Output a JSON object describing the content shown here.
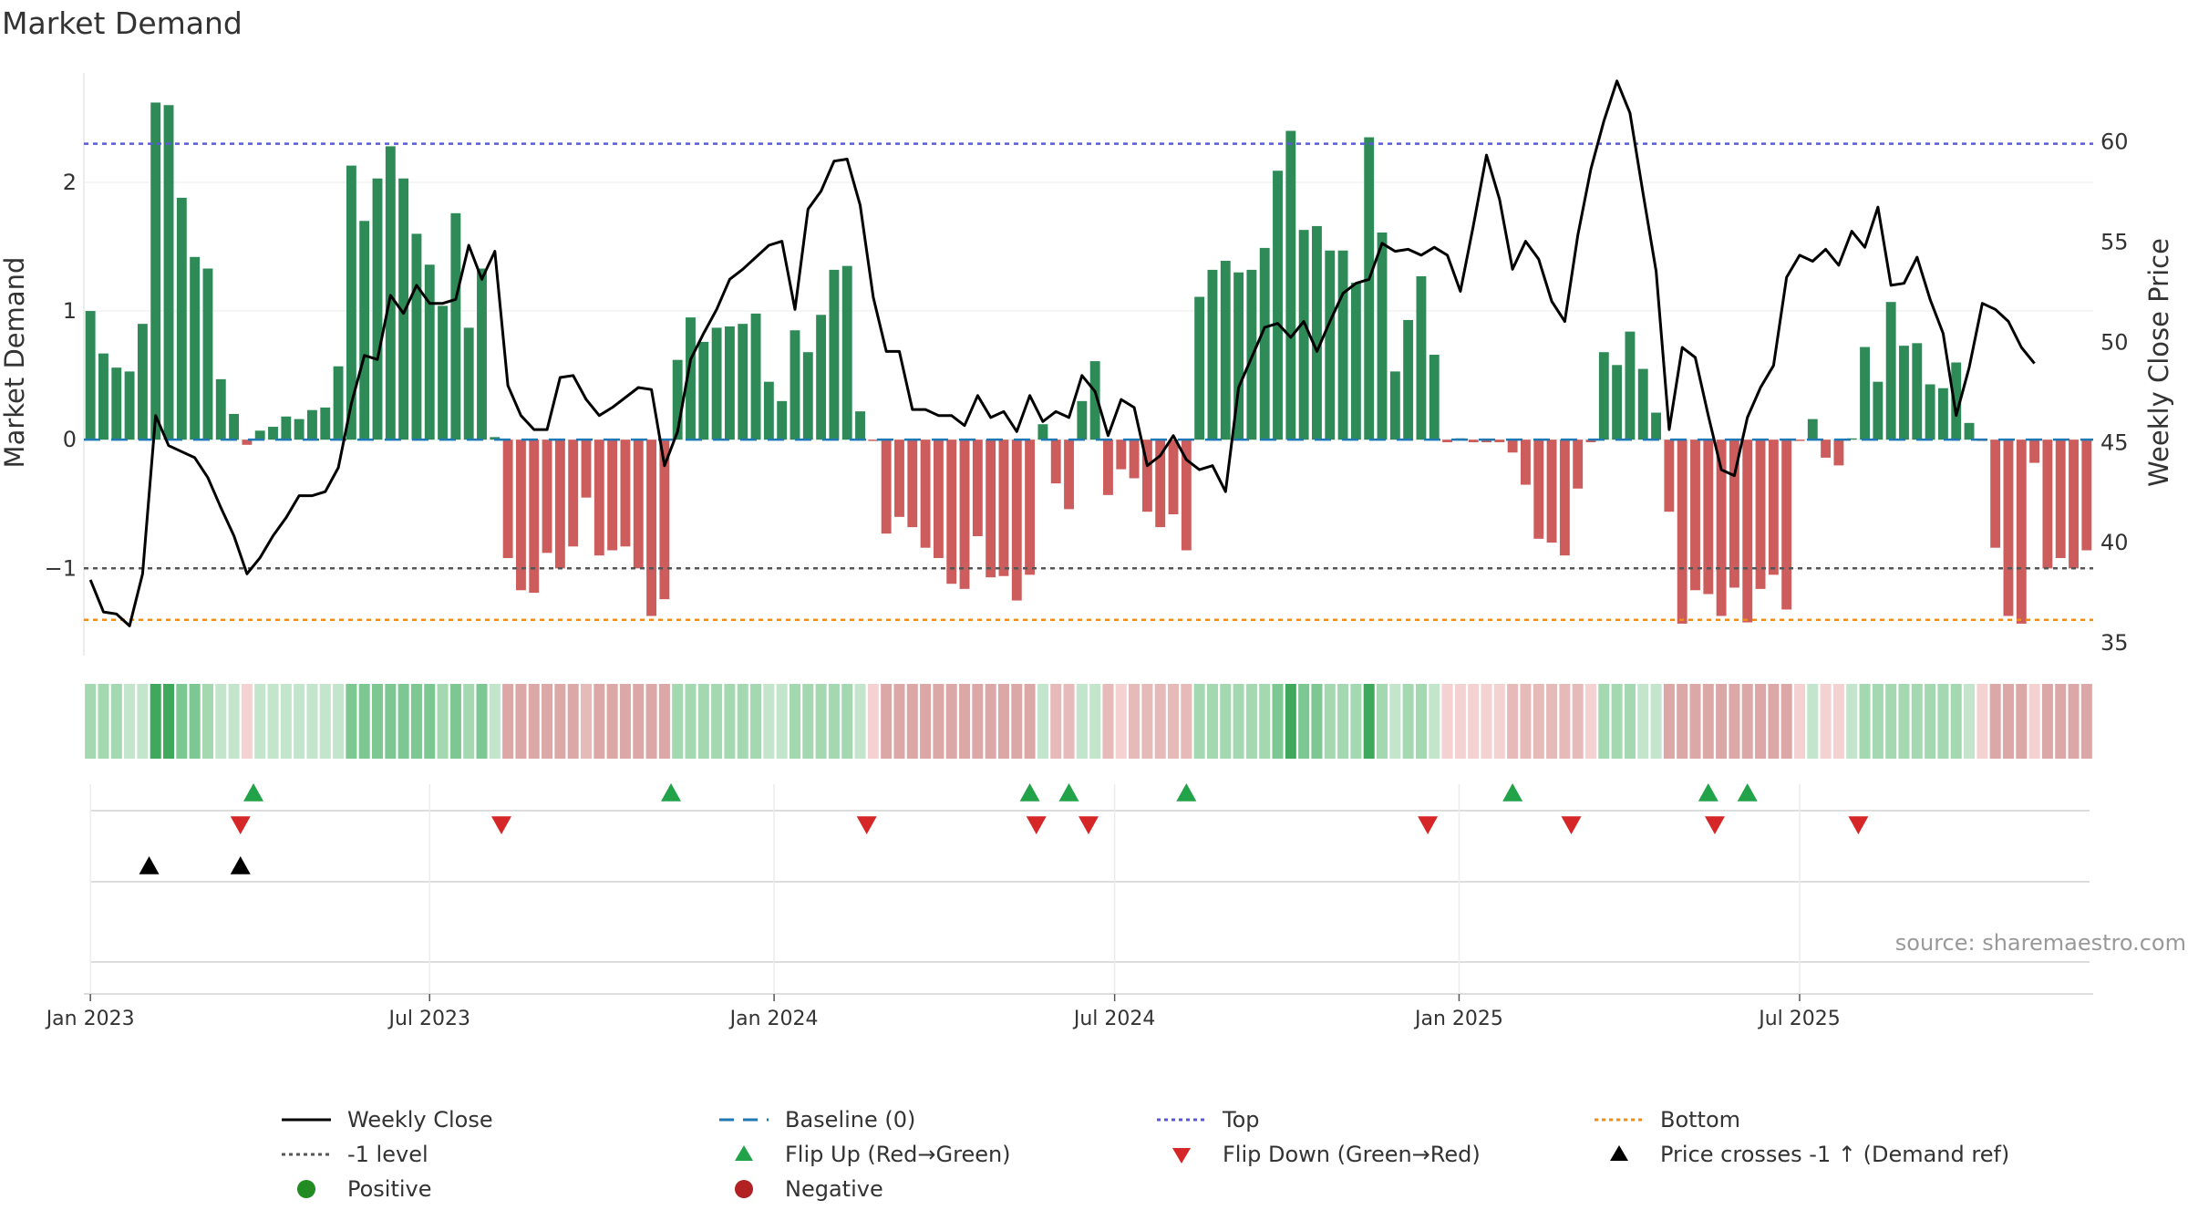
{
  "title": "Market Demand",
  "source_note": "source: sharemaestro.com",
  "colors": {
    "positive_bar": "#2e8b57",
    "negative_bar": "#cd5c5c",
    "close_line": "#000000",
    "baseline": "#1f77b4",
    "top": "#5b5bd6",
    "bottom": "#ee8c1e",
    "minus1": "#555555",
    "flip_up": "#22a34a",
    "flip_down": "#d62728",
    "cross": "#000000",
    "positive_dot": "#228b22",
    "negative_dot": "#b22222"
  },
  "chart_data": {
    "type": "bar+line",
    "title": "Market Demand",
    "ylabel_left": "Market Demand",
    "ylabel_right": "Weekly Close Price",
    "ylim_left": [
      -1.65,
      2.85
    ],
    "ylim_right": [
      34.5,
      63.4
    ],
    "left_ticks": [
      2,
      1,
      0,
      -1
    ],
    "left_tick_labels": [
      "2",
      "1",
      "0",
      "−1"
    ],
    "right_ticks": [
      60,
      55,
      50,
      45,
      40,
      35
    ],
    "x_tick_labels": [
      "Jan 2023",
      "Jul 2023",
      "Jan 2024",
      "Jul 2024",
      "Jan 2025",
      "Jul 2025"
    ],
    "x_tick_weeks": [
      0.5,
      26.5,
      52.9,
      79,
      105.4,
      131.5
    ],
    "top_level": 2.3,
    "bottom_level": -1.4,
    "minus1_level": -1,
    "demand": [
      1.0,
      0.67,
      0.56,
      0.53,
      0.9,
      2.62,
      2.6,
      1.88,
      1.42,
      1.33,
      0.47,
      0.2,
      -0.04,
      0.07,
      0.1,
      0.18,
      0.16,
      0.23,
      0.25,
      0.57,
      2.13,
      1.7,
      2.03,
      2.28,
      2.03,
      1.6,
      1.36,
      1.04,
      1.76,
      0.87,
      1.33,
      0.02,
      -0.92,
      -1.17,
      -1.19,
      -0.88,
      -1.0,
      -0.83,
      -0.45,
      -0.9,
      -0.86,
      -0.83,
      -1.0,
      -1.37,
      -1.24,
      0.62,
      0.95,
      0.76,
      0.87,
      0.88,
      0.9,
      0.98,
      0.45,
      0.3,
      0.85,
      0.68,
      0.97,
      1.32,
      1.35,
      0.22,
      -0.01,
      -0.73,
      -0.6,
      -0.68,
      -0.84,
      -0.92,
      -1.12,
      -1.16,
      -0.75,
      -1.07,
      -1.06,
      -1.25,
      -1.05,
      0.12,
      -0.34,
      -0.54,
      0.3,
      0.61,
      -0.43,
      -0.23,
      -0.3,
      -0.56,
      -0.68,
      -0.58,
      -0.86,
      1.11,
      1.32,
      1.39,
      1.3,
      1.32,
      1.49,
      2.09,
      2.4,
      1.63,
      1.66,
      1.47,
      1.47,
      1.22,
      2.35,
      1.61,
      0.53,
      0.93,
      1.27,
      0.66,
      -0.02,
      0.01,
      -0.02,
      -0.02,
      -0.02,
      -0.1,
      -0.35,
      -0.77,
      -0.8,
      -0.9,
      -0.38,
      -0.02,
      0.68,
      0.58,
      0.84,
      0.55,
      0.21,
      -0.56,
      -1.43,
      -1.17,
      -1.2,
      -1.37,
      -1.15,
      -1.42,
      -1.16,
      -1.05,
      -1.32,
      -0.01,
      0.16,
      -0.14,
      -0.2,
      0.01,
      0.72,
      0.45,
      1.07,
      0.73,
      0.75,
      0.43,
      0.4,
      0.6,
      0.13,
      -0.01,
      -0.84,
      -1.37,
      -1.43,
      -0.18,
      -1.0,
      -0.92,
      -1.0,
      -0.86
    ],
    "close": [
      38.1,
      36.5,
      36.4,
      35.8,
      38.4,
      46.3,
      44.8,
      44.5,
      44.2,
      43.2,
      41.7,
      40.3,
      38.4,
      39.2,
      40.3,
      41.2,
      42.3,
      42.3,
      42.5,
      43.7,
      46.9,
      49.3,
      49.1,
      52.3,
      51.4,
      52.8,
      51.9,
      51.9,
      52.1,
      54.8,
      53.1,
      54.5,
      47.8,
      46.3,
      45.6,
      45.6,
      48.2,
      48.3,
      47.1,
      46.3,
      46.7,
      47.2,
      47.7,
      47.6,
      43.8,
      45.5,
      49.1,
      50.4,
      51.6,
      53.1,
      53.6,
      54.2,
      54.8,
      55.0,
      51.6,
      56.6,
      57.5,
      59.0,
      59.1,
      56.8,
      52.2,
      49.5,
      49.5,
      46.6,
      46.6,
      46.3,
      46.3,
      45.8,
      47.3,
      46.2,
      46.5,
      45.5,
      47.3,
      46.0,
      46.5,
      46.2,
      48.3,
      47.5,
      45.3,
      47.1,
      46.7,
      43.8,
      44.3,
      45.3,
      44.1,
      43.6,
      43.8,
      42.5,
      47.7,
      49.2,
      50.7,
      50.9,
      50.2,
      51.0,
      49.5,
      51.0,
      52.4,
      52.9,
      53.1,
      54.9,
      54.5,
      54.6,
      54.3,
      54.7,
      54.3,
      52.5,
      55.8,
      59.3,
      57.1,
      53.6,
      55.0,
      54.1,
      52.0,
      51.0,
      55.3,
      58.6,
      61.0,
      63.0,
      61.4,
      57.4,
      53.5,
      45.6,
      49.7,
      49.2,
      46.3,
      43.6,
      43.3,
      46.2,
      47.7,
      48.8,
      53.2,
      54.3,
      54.0,
      54.6,
      53.8,
      55.5,
      54.7,
      56.7,
      52.8,
      52.9,
      54.2,
      52.1,
      50.4,
      46.3,
      48.7,
      51.9,
      51.6,
      51.0,
      49.7,
      48.9
    ],
    "heat_strip": [
      "#a3d8b0",
      "#a3d8b0",
      "#a3d8b0",
      "#c2e5cb",
      "#c2e5cb",
      "#40a85c",
      "#40a85c",
      "#7cc792",
      "#7cc792",
      "#a3d8b0",
      "#c2e5cb",
      "#c2e5cb",
      "#f4d2d2",
      "#c2e5cb",
      "#c2e5cb",
      "#c2e5cb",
      "#c2e5cb",
      "#c2e5cb",
      "#c2e5cb",
      "#c2e5cb",
      "#7cc792",
      "#7cc792",
      "#7cc792",
      "#7cc792",
      "#7cc792",
      "#7cc792",
      "#7cc792",
      "#a3d8b0",
      "#7cc792",
      "#a3d8b0",
      "#7cc792",
      "#c2e5cb",
      "#dca7a7",
      "#dca7a7",
      "#dca7a7",
      "#dca7a7",
      "#dca7a7",
      "#dca7a7",
      "#e7baba",
      "#dca7a7",
      "#dca7a7",
      "#dca7a7",
      "#dca7a7",
      "#dca7a7",
      "#dca7a7",
      "#a3d8b0",
      "#a3d8b0",
      "#a3d8b0",
      "#a3d8b0",
      "#a3d8b0",
      "#a3d8b0",
      "#a3d8b0",
      "#c2e5cb",
      "#c2e5cb",
      "#a3d8b0",
      "#a3d8b0",
      "#a3d8b0",
      "#a3d8b0",
      "#a3d8b0",
      "#c2e5cb",
      "#f4d2d2",
      "#dca7a7",
      "#dca7a7",
      "#dca7a7",
      "#dca7a7",
      "#dca7a7",
      "#dca7a7",
      "#dca7a7",
      "#dca7a7",
      "#dca7a7",
      "#dca7a7",
      "#dca7a7",
      "#dca7a7",
      "#c2e5cb",
      "#e7baba",
      "#e7baba",
      "#c2e5cb",
      "#c2e5cb",
      "#e7baba",
      "#f4d2d2",
      "#e7baba",
      "#e7baba",
      "#e7baba",
      "#e7baba",
      "#e7baba",
      "#a3d8b0",
      "#a3d8b0",
      "#a3d8b0",
      "#a3d8b0",
      "#a3d8b0",
      "#a3d8b0",
      "#7cc792",
      "#40a85c",
      "#7cc792",
      "#7cc792",
      "#a3d8b0",
      "#a3d8b0",
      "#a3d8b0",
      "#40a85c",
      "#a3d8b0",
      "#c2e5cb",
      "#a3d8b0",
      "#a3d8b0",
      "#c2e5cb",
      "#f4d2d2",
      "#f4d2d2",
      "#f4d2d2",
      "#f4d2d2",
      "#f4d2d2",
      "#e7baba",
      "#e7baba",
      "#e7baba",
      "#e7baba",
      "#e7baba",
      "#e7baba",
      "#f4d2d2",
      "#a3d8b0",
      "#a3d8b0",
      "#a3d8b0",
      "#c2e5cb",
      "#c2e5cb",
      "#dca7a7",
      "#dca7a7",
      "#dca7a7",
      "#dca7a7",
      "#dca7a7",
      "#dca7a7",
      "#dca7a7",
      "#dca7a7",
      "#dca7a7",
      "#dca7a7",
      "#f4d2d2",
      "#c2e5cb",
      "#f4d2d2",
      "#f4d2d2",
      "#c2e5cb",
      "#a3d8b0",
      "#a3d8b0",
      "#a3d8b0",
      "#a3d8b0",
      "#a3d8b0",
      "#a3d8b0",
      "#a3d8b0",
      "#a3d8b0",
      "#c2e5cb",
      "#f4d2d2",
      "#dca7a7",
      "#dca7a7",
      "#dca7a7",
      "#f4d2d2",
      "#dca7a7",
      "#dca7a7",
      "#dca7a7",
      "#dca7a7"
    ],
    "flip_up_weeks": [
      13,
      45,
      72.5,
      75.5,
      84.5,
      109.5,
      124.5,
      127.5
    ],
    "flip_down_weeks": [
      12,
      32,
      60,
      73,
      77,
      103,
      114,
      125,
      136
    ],
    "cross_weeks": [
      5,
      12
    ]
  },
  "legend": [
    {
      "label": "Weekly Close",
      "symbol": "line"
    },
    {
      "label": "Baseline (0)",
      "symbol": "dash"
    },
    {
      "label": "Top",
      "symbol": "dot-blue"
    },
    {
      "label": "Bottom",
      "symbol": "dot-orange"
    },
    {
      "label": "-1 level",
      "symbol": "dot-gray"
    },
    {
      "label": "Flip Up (Red→Green)",
      "symbol": "tri-up-green"
    },
    {
      "label": "Flip Down (Green→Red)",
      "symbol": "tri-down-red"
    },
    {
      "label": "Price crosses -1 ↑ (Demand ref)",
      "symbol": "tri-up-black"
    },
    {
      "label": "Positive",
      "symbol": "dot-green"
    },
    {
      "label": "Negative",
      "symbol": "dot-red"
    }
  ]
}
